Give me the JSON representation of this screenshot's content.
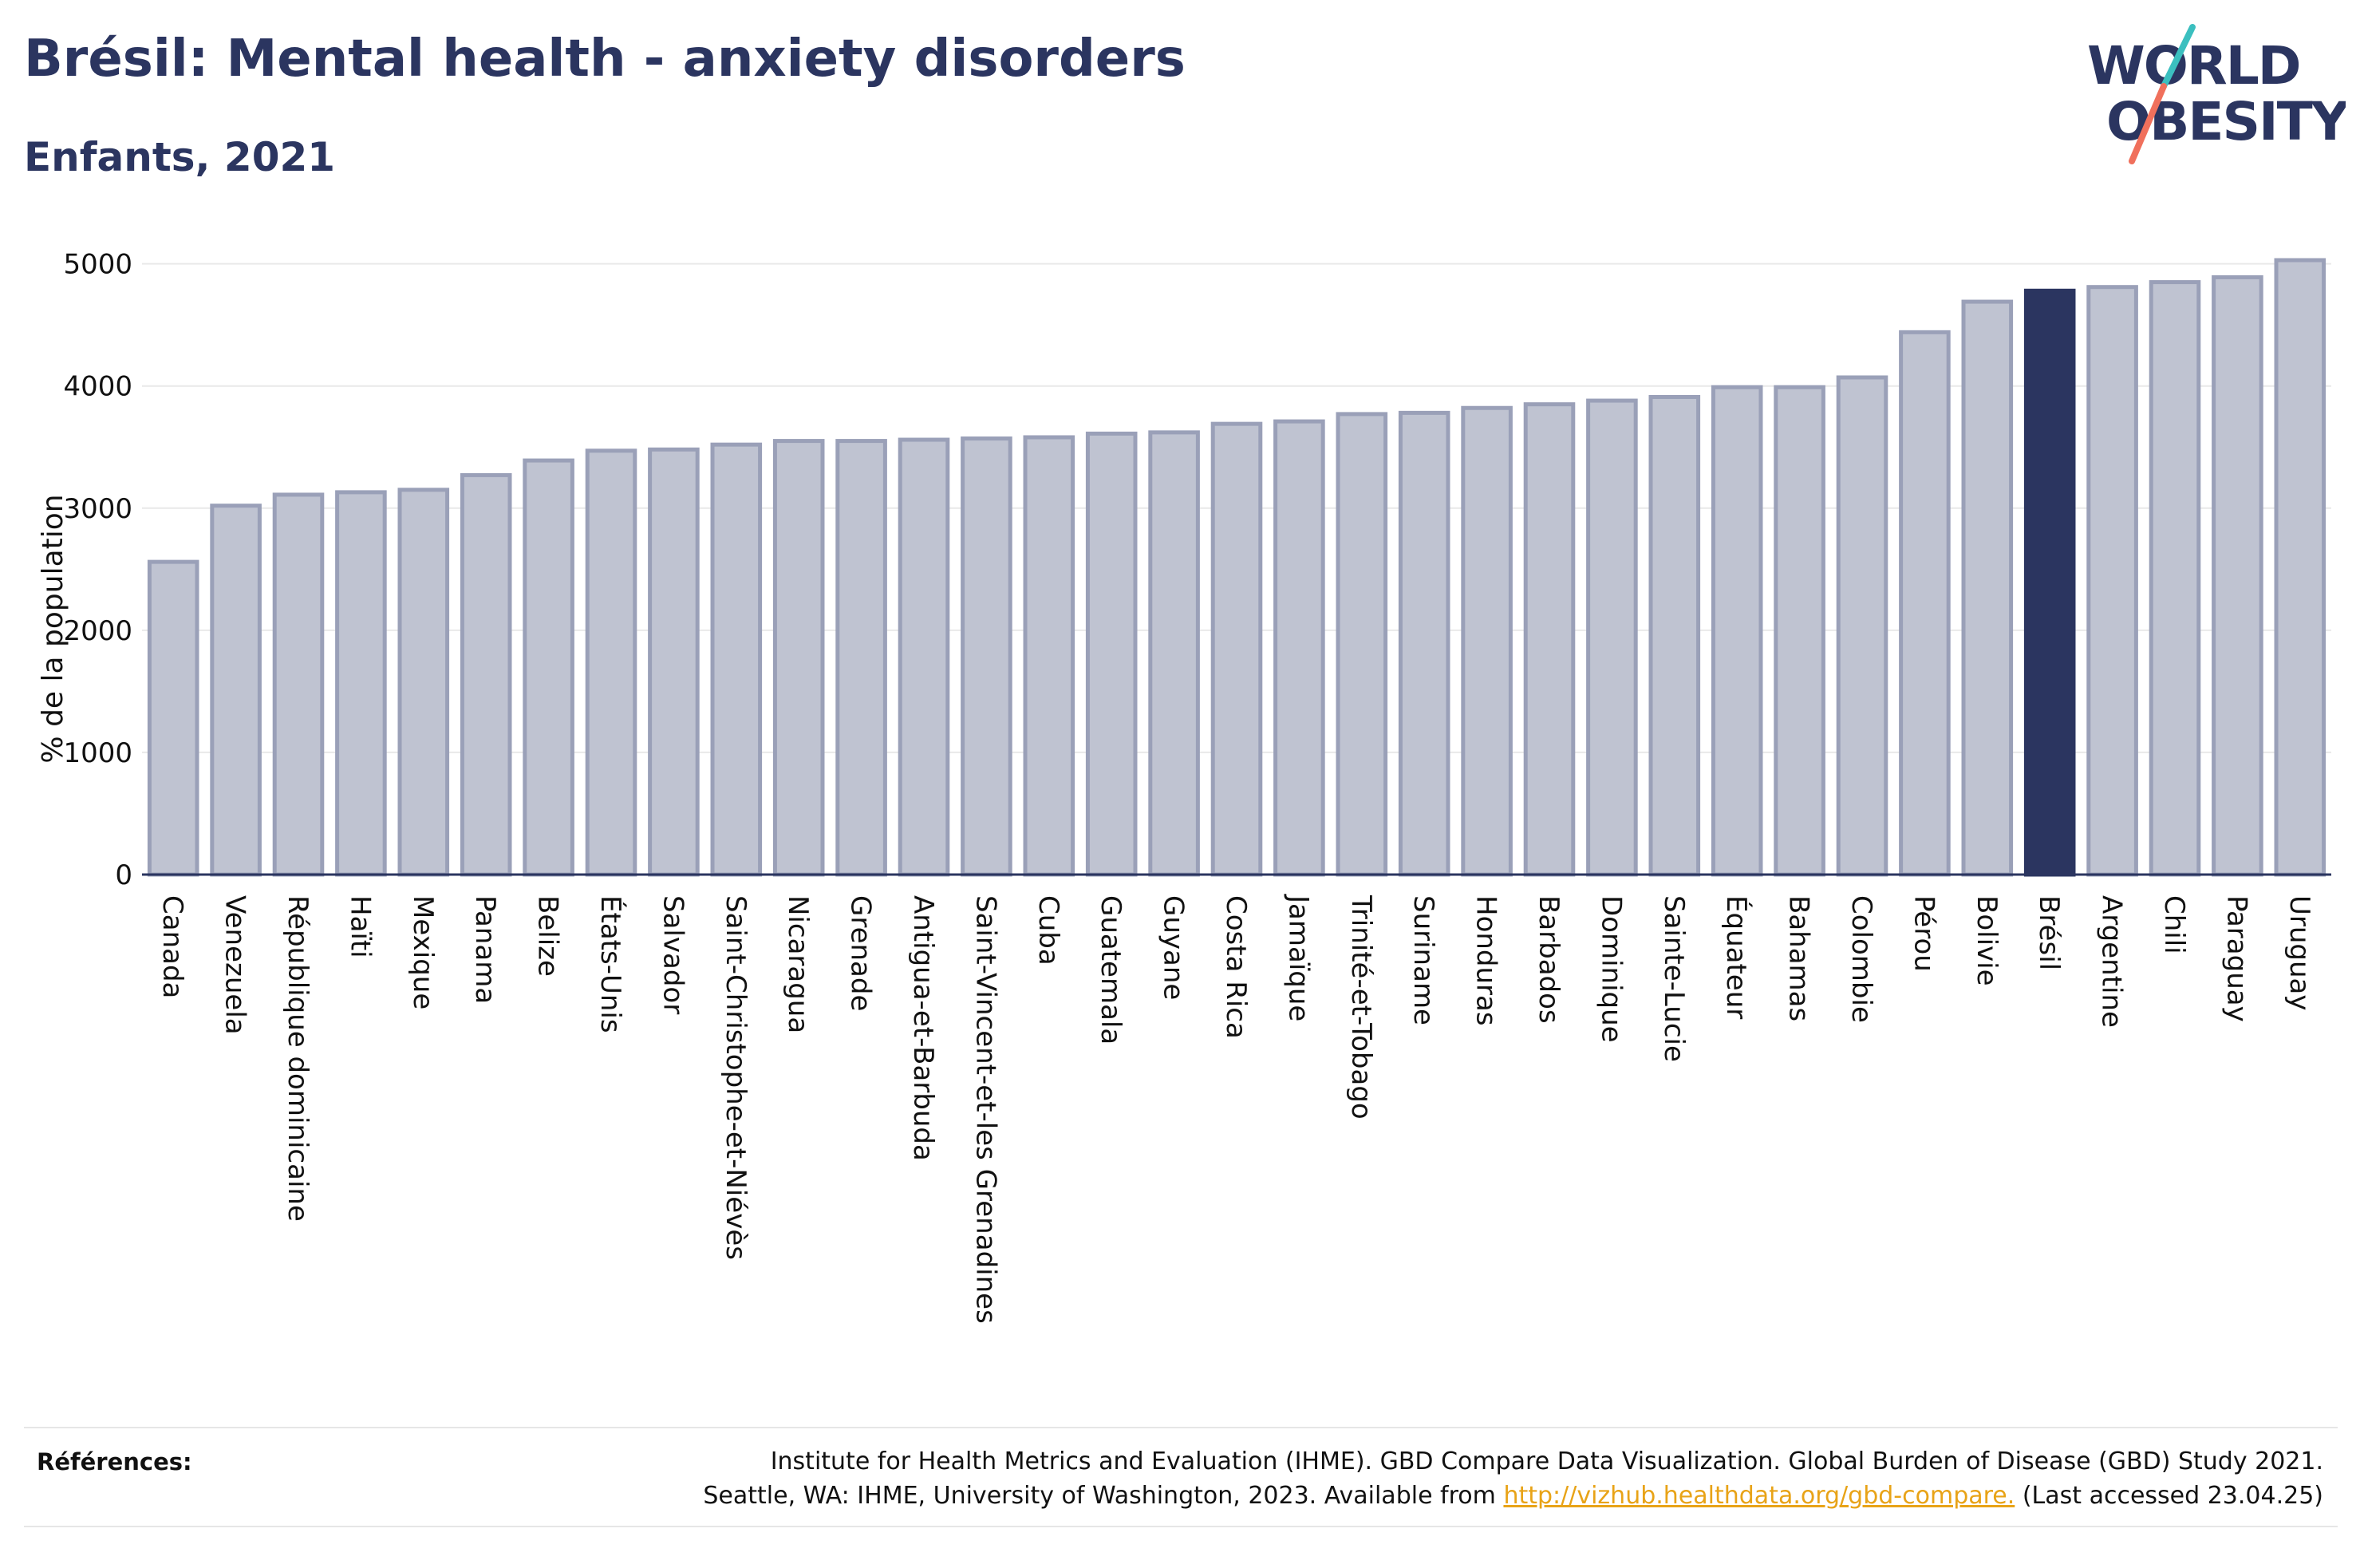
{
  "title": "Brésil: Mental health - anxiety disorders",
  "subtitle": "Enfants, 2021",
  "logo": {
    "line1": "WORLD",
    "line2": "OBESITY"
  },
  "colors": {
    "bar": "#bfc3d1",
    "bar_stroke": "#9aa0b8",
    "highlight": "#2b3560",
    "text": "#2b3560"
  },
  "chart_data": {
    "type": "bar",
    "ylabel": "% de la population",
    "ylim": [
      0,
      5200
    ],
    "yticks": [
      0,
      1000,
      2000,
      3000,
      4000,
      5000
    ],
    "grid": true,
    "highlight": "Brésil",
    "categories": [
      "Canada",
      "Venezuela",
      "République dominicaine",
      "Haïti",
      "Mexique",
      "Panama",
      "Belize",
      "États-Unis",
      "Salvador",
      "Saint-Christophe-et-Niévès",
      "Nicaragua",
      "Grenade",
      "Antigua-et-Barbuda",
      "Saint-Vincent-et-les Grenadines",
      "Cuba",
      "Guatemala",
      "Guyane",
      "Costa Rica",
      "Jamaïque",
      "Trinité-et-Tobago",
      "Suriname",
      "Honduras",
      "Barbados",
      "Dominique",
      "Sainte-Lucie",
      "Équateur",
      "Bahamas",
      "Colombie",
      "Pérou",
      "Bolivie",
      "Brésil",
      "Argentine",
      "Chili",
      "Paraguay",
      "Uruguay"
    ],
    "values": [
      2560,
      3020,
      3110,
      3130,
      3150,
      3270,
      3390,
      3470,
      3480,
      3520,
      3550,
      3550,
      3560,
      3570,
      3580,
      3610,
      3620,
      3690,
      3710,
      3770,
      3780,
      3820,
      3850,
      3880,
      3910,
      3990,
      3990,
      4070,
      4440,
      4690,
      4780,
      4810,
      4850,
      4890,
      5030
    ]
  },
  "references": {
    "label": "Références:",
    "line1": "Institute for Health Metrics and Evaluation (IHME). GBD Compare Data Visualization. Global Burden of Disease (GBD) Study 2021.",
    "line2_prefix": "Seattle, WA: IHME, University of Washington, 2023. Available from",
    "link": "http://vizhub.healthdata.org/gbd-compare.",
    "line2_suffix": "(Last accessed 23.04.25)"
  }
}
